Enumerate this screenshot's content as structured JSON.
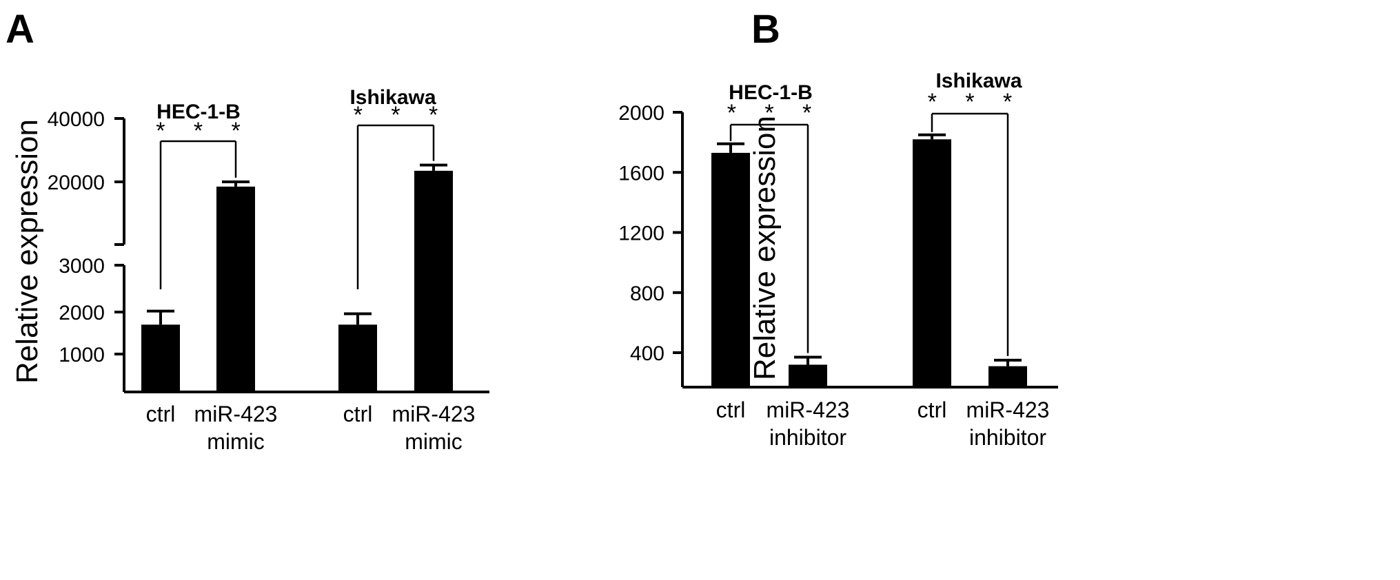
{
  "chart_data": [
    {
      "panel": "A",
      "type": "bar",
      "ylabel": "Relative expression",
      "axis_break": true,
      "lower_ticks": [
        "1000",
        "2000",
        "3000"
      ],
      "upper_ticks": [
        "20000",
        "40000"
      ],
      "lower_ylim": [
        0,
        3000
      ],
      "upper_ylim": [
        20000,
        40000
      ],
      "groups": [
        {
          "name": "HEC-1-B",
          "significance": "* * *",
          "bars": [
            {
              "label": "ctrl",
              "value": 1700,
              "error": 320
            },
            {
              "label": "miR-423\nmimic",
              "value": 18500,
              "error": 1500
            }
          ]
        },
        {
          "name": "Ishikawa",
          "significance": "* * *",
          "bars": [
            {
              "label": "ctrl",
              "value": 1700,
              "error": 260
            },
            {
              "label": "miR-423\nmimic",
              "value": 23500,
              "error": 1800
            }
          ]
        }
      ]
    },
    {
      "panel": "B",
      "type": "bar",
      "ylabel": "Relative expression",
      "axis_break": false,
      "ticks": [
        "400",
        "800",
        "1200",
        "1600",
        "2000"
      ],
      "ylim": [
        130,
        2000
      ],
      "groups": [
        {
          "name": "HEC-1-B",
          "significance": "* * *",
          "bars": [
            {
              "label": "ctrl",
              "value": 1730,
              "error": 60
            },
            {
              "label": "miR-423\ninhibitor",
              "value": 320,
              "error": 50
            }
          ]
        },
        {
          "name": "Ishikawa",
          "significance": "* * *",
          "bars": [
            {
              "label": "ctrl",
              "value": 1820,
              "error": 30
            },
            {
              "label": "miR-423\ninhibitor",
              "value": 310,
              "error": 40
            }
          ]
        }
      ]
    }
  ]
}
